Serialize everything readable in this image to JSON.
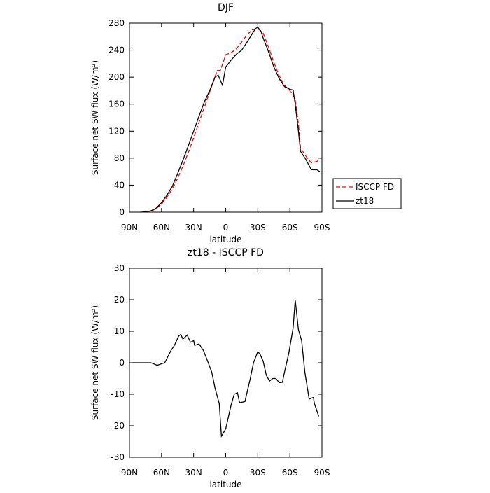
{
  "chart_data": [
    {
      "type": "line",
      "title": "DJF",
      "xlabel": "latitude",
      "ylabel": "Surface net SW flux (W/m²)",
      "xlim": [
        90,
        -90
      ],
      "xticks": [
        {
          "value": 90,
          "label": "90N"
        },
        {
          "value": 60,
          "label": "60N"
        },
        {
          "value": 30,
          "label": "30N"
        },
        0,
        {
          "value": -30,
          "label": "30S"
        },
        {
          "value": -60,
          "label": "60S"
        },
        {
          "value": -90,
          "label": "90S"
        }
      ],
      "ylim": [
        0,
        280
      ],
      "yticks": [
        0,
        40,
        80,
        120,
        160,
        200,
        240,
        280
      ],
      "legend": "right",
      "series": [
        {
          "name": "ISCCP FD",
          "color": "#ff0000",
          "dash": true,
          "x": [
            75,
            70,
            65,
            60,
            55,
            50,
            45,
            40,
            35,
            30,
            25,
            20,
            15,
            10,
            8,
            5,
            0,
            -5,
            -10,
            -15,
            -20,
            -25,
            -30,
            -35,
            -40,
            -45,
            -50,
            -55,
            -60,
            -65,
            -68,
            -70,
            -75,
            -80,
            -85,
            -88
          ],
          "values": [
            0.5,
            1.5,
            5,
            12,
            22,
            34,
            50,
            68,
            88,
            110,
            133,
            155,
            178,
            200,
            210,
            210,
            233,
            236,
            242,
            252,
            263,
            270,
            272,
            265,
            245,
            222,
            202,
            188,
            180,
            168,
            130,
            95,
            83,
            73,
            75,
            78
          ]
        },
        {
          "name": "zt18",
          "color": "#000000",
          "dash": false,
          "x": [
            80,
            75,
            70,
            65,
            60,
            55,
            50,
            45,
            40,
            35,
            30,
            25,
            20,
            15,
            10,
            7,
            3,
            0,
            -5,
            -10,
            -15,
            -20,
            -25,
            -28,
            -30,
            -33,
            -35,
            -40,
            -45,
            -50,
            -55,
            -60,
            -63,
            -65,
            -68,
            -70,
            -75,
            -80,
            -85,
            -88
          ],
          "values": [
            0,
            0.5,
            2,
            6,
            14,
            25,
            38,
            57,
            77,
            98,
            120,
            142,
            163,
            180,
            200,
            203,
            188,
            215,
            225,
            234,
            240,
            252,
            265,
            272,
            274,
            268,
            258,
            238,
            215,
            198,
            186,
            182,
            181,
            160,
            120,
            90,
            78,
            63,
            63,
            60
          ]
        }
      ]
    },
    {
      "type": "line",
      "title": "zt18 - ISCCP FD",
      "xlabel": "latitude",
      "ylabel": "Surface net SW flux (W/m²)",
      "xlim": [
        90,
        -90
      ],
      "xticks": [
        {
          "value": 90,
          "label": "90N"
        },
        {
          "value": 60,
          "label": "60N"
        },
        {
          "value": 30,
          "label": "30N"
        },
        0,
        {
          "value": -30,
          "label": "30S"
        },
        {
          "value": -60,
          "label": "60S"
        },
        {
          "value": -90,
          "label": "90S"
        }
      ],
      "ylim": [
        -30,
        30
      ],
      "yticks": [
        -30,
        -20,
        -10,
        0,
        10,
        20,
        30
      ],
      "color": "#000000",
      "x": [
        87,
        70,
        64,
        57,
        51,
        48,
        44,
        42,
        40,
        36,
        33,
        30,
        29,
        25,
        21,
        18,
        13,
        10,
        6,
        4,
        0,
        -5,
        -8,
        -11,
        -13,
        -18,
        -23,
        -26,
        -30,
        -32,
        -35,
        -38,
        -41,
        -44,
        -47,
        -50,
        -53,
        -55,
        -59,
        -63,
        -65,
        -68,
        -71,
        -74,
        -78,
        -82,
        -83,
        -87
      ],
      "values": [
        0,
        0,
        -0.8,
        0,
        4,
        5.5,
        8.5,
        9,
        7.5,
        8.8,
        6.5,
        7,
        5.5,
        6,
        4,
        1.5,
        -3,
        -8,
        -13,
        -23.3,
        -21,
        -13.5,
        -10,
        -9.5,
        -12.7,
        -12.3,
        -5,
        0,
        3.5,
        2.8,
        0.5,
        -4,
        -5.8,
        -5,
        -5,
        -6.3,
        -6.2,
        -3,
        3,
        11,
        20,
        10.5,
        7,
        -3,
        -11.5,
        -11,
        -13,
        -17
      ]
    }
  ]
}
